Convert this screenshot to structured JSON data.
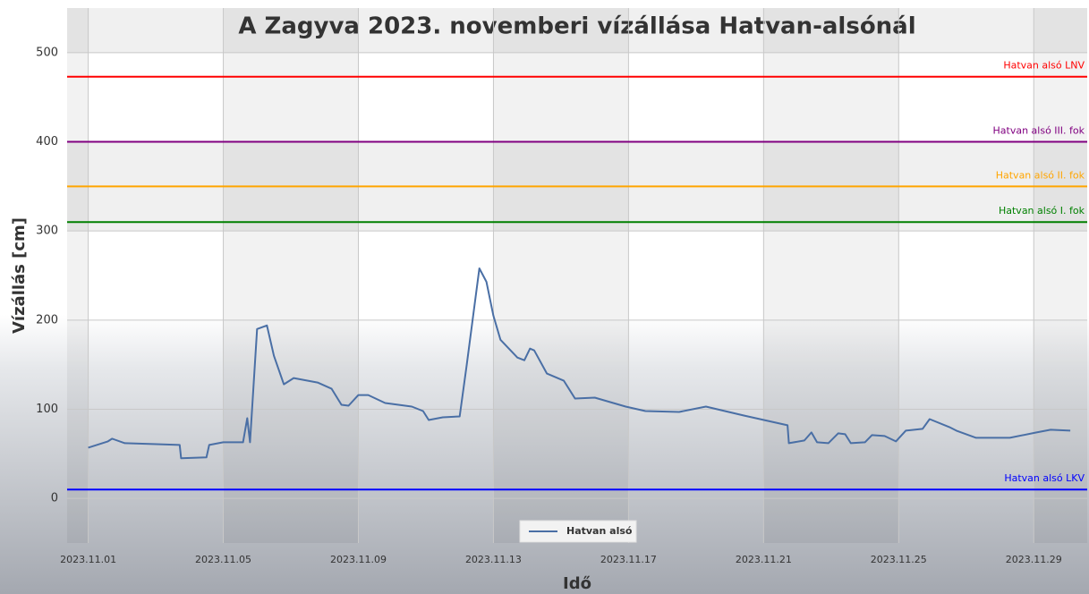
{
  "chart_data": {
    "type": "line",
    "title": "A Zagyva 2023. novemberi vízállása Hatvan-alsónál",
    "y_label": "Vízállás [cm]",
    "x_label": "Idő",
    "ylim": [
      -50,
      550
    ],
    "yticks": [
      0,
      100,
      200,
      300,
      400,
      500
    ],
    "xlim": [
      "2023-10-31T09:00",
      "2023-11-30T14:00"
    ],
    "xticks": [
      {
        "value": "2023-11-01T00:00",
        "label": "2023.11.01"
      },
      {
        "value": "2023-11-05T00:00",
        "label": "2023.11.05"
      },
      {
        "value": "2023-11-09T00:00",
        "label": "2023.11.09"
      },
      {
        "value": "2023-11-13T00:00",
        "label": "2023.11.13"
      },
      {
        "value": "2023-11-17T00:00",
        "label": "2023.11.17"
      },
      {
        "value": "2023-11-21T00:00",
        "label": "2023.11.21"
      },
      {
        "value": "2023-11-25T00:00",
        "label": "2023.11.25"
      },
      {
        "value": "2023-11-29T00:00",
        "label": "2023.11.29"
      }
    ],
    "grid": true,
    "legend": "bottom",
    "x": [
      "2023-11-01T00:00",
      "2023-11-01T14:00",
      "2023-11-01T17:00",
      "2023-11-02T02:00",
      "2023-11-02T22:00",
      "2023-11-03T17:00",
      "2023-11-03T18:00",
      "2023-11-04T12:00",
      "2023-11-04T14:00",
      "2023-11-05T00:00",
      "2023-11-05T14:00",
      "2023-11-05T17:00",
      "2023-11-05T19:00",
      "2023-11-06T00:00",
      "2023-11-06T07:00",
      "2023-11-06T12:00",
      "2023-11-06T19:00",
      "2023-11-07T02:00",
      "2023-11-07T19:00",
      "2023-11-08T05:00",
      "2023-11-08T12:00",
      "2023-11-08T17:00",
      "2023-11-09T00:00",
      "2023-11-09T07:00",
      "2023-11-09T19:00",
      "2023-11-10T14:00",
      "2023-11-10T22:00",
      "2023-11-11T02:00",
      "2023-11-11T12:00",
      "2023-11-12T00:00",
      "2023-11-12T05:00",
      "2023-11-12T14:00",
      "2023-11-12T19:00",
      "2023-11-13T00:00",
      "2023-11-13T05:00",
      "2023-11-13T17:00",
      "2023-11-13T22:00",
      "2023-11-14T02:00",
      "2023-11-14T05:00",
      "2023-11-14T14:00",
      "2023-11-15T02:00",
      "2023-11-15T10:00",
      "2023-11-16T00:00",
      "2023-11-16T22:00",
      "2023-11-17T12:00",
      "2023-11-18T12:00",
      "2023-11-19T07:00",
      "2023-11-20T10:00",
      "2023-11-21T17:00",
      "2023-11-21T18:00",
      "2023-11-22T05:00",
      "2023-11-22T10:00",
      "2023-11-22T14:00",
      "2023-11-22T22:00",
      "2023-11-23T05:00",
      "2023-11-23T10:00",
      "2023-11-23T14:00",
      "2023-11-24T00:00",
      "2023-11-24T05:00",
      "2023-11-24T14:00",
      "2023-11-24T22:00",
      "2023-11-25T05:00",
      "2023-11-25T17:00",
      "2023-11-25T22:00",
      "2023-11-26T12:00",
      "2023-11-26T17:00",
      "2023-11-27T07:00",
      "2023-11-28T07:00",
      "2023-11-29T02:00",
      "2023-11-29T12:00",
      "2023-11-30T02:00"
    ],
    "series": [
      {
        "name": "Hatvan alsó",
        "color": "#4a6fa5",
        "values": [
          57,
          64,
          67,
          62,
          61,
          60,
          45,
          46,
          60,
          63,
          63,
          90,
          63,
          190,
          194,
          160,
          128,
          135,
          130,
          123,
          105,
          104,
          116,
          116,
          107,
          103,
          98,
          88,
          91,
          92,
          150,
          258,
          243,
          205,
          178,
          158,
          155,
          168,
          166,
          140,
          132,
          112,
          113,
          103,
          98,
          97,
          103,
          93,
          82,
          62,
          65,
          74,
          63,
          62,
          73,
          72,
          62,
          63,
          71,
          70,
          64,
          76,
          78,
          89,
          80,
          76,
          68,
          68,
          74,
          77,
          76
        ]
      }
    ],
    "thresholds": [
      {
        "name": "Hatvan alsó LNV",
        "value": 473,
        "color": "#ff0000"
      },
      {
        "name": "Hatvan alsó III. fok",
        "value": 400,
        "color": "#800080"
      },
      {
        "name": "Hatvan alsó II. fok",
        "value": 350,
        "color": "#ffa500"
      },
      {
        "name": "Hatvan alsó I. fok",
        "value": 310,
        "color": "#008000"
      },
      {
        "name": "Hatvan alsó LKV",
        "value": 10,
        "color": "#0000ff"
      }
    ]
  }
}
